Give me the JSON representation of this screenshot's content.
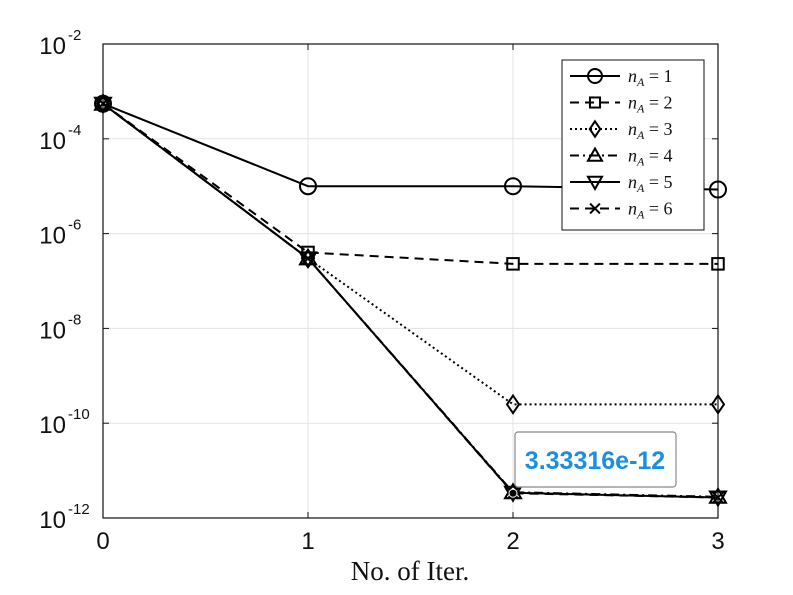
{
  "chart_data": {
    "type": "line",
    "xlabel": "No. of Iter.",
    "ylabel": "",
    "title": "",
    "x": [
      0,
      1,
      2,
      3
    ],
    "xlim": [
      0,
      3
    ],
    "ylim_log10": [
      -12,
      -2
    ],
    "yscale": "log",
    "grid": true,
    "legend_position": "top-right",
    "xticks": [
      "0",
      "1",
      "2",
      "3"
    ],
    "yticks": [
      {
        "base": "10",
        "exp": "-2"
      },
      {
        "base": "10",
        "exp": "-4"
      },
      {
        "base": "10",
        "exp": "-6"
      },
      {
        "base": "10",
        "exp": "-8"
      },
      {
        "base": "10",
        "exp": "-10"
      },
      {
        "base": "10",
        "exp": "-12"
      }
    ],
    "series": [
      {
        "name": "n_A = 1",
        "label_main": "n",
        "label_sub": "A",
        "label_rest": " = 1",
        "marker": "circle",
        "dash": "solid",
        "values": [
          0.00055,
          1e-05,
          1e-05,
          8.5e-06
        ]
      },
      {
        "name": "n_A = 2",
        "label_main": "n",
        "label_sub": "A",
        "label_rest": " = 2",
        "marker": "square",
        "dash": "dashed",
        "values": [
          0.00055,
          4e-07,
          2.3e-07,
          2.3e-07
        ]
      },
      {
        "name": "n_A = 3",
        "label_main": "n",
        "label_sub": "A",
        "label_rest": " = 3",
        "marker": "diamond",
        "dash": "dotted",
        "values": [
          0.00055,
          3e-07,
          2.5e-10,
          2.5e-10
        ]
      },
      {
        "name": "n_A = 4",
        "label_main": "n",
        "label_sub": "A",
        "label_rest": " = 4",
        "marker": "triangle-up",
        "dash": "dashdot",
        "values": [
          0.00055,
          3e-07,
          3.5e-12,
          2.8e-12
        ]
      },
      {
        "name": "n_A = 5",
        "label_main": "n",
        "label_sub": "A",
        "label_rest": " = 5",
        "marker": "triangle-down",
        "dash": "solid",
        "values": [
          0.00055,
          3e-07,
          3.4e-12,
          2.7e-12
        ]
      },
      {
        "name": "n_A = 6",
        "label_main": "n",
        "label_sub": "A",
        "label_rest": " = 6",
        "marker": "x",
        "dash": "dashed",
        "values": [
          0.00055,
          3e-07,
          3.33316e-12,
          2.7e-12
        ]
      }
    ],
    "annotation": {
      "text": "3.33316e-12",
      "x": 2,
      "y": 3.33316e-12
    }
  },
  "colors": {
    "line": "#000000",
    "grid": "#e3e3e3",
    "datatip_text": "#1a8fe0",
    "datatip_border": "#888888"
  }
}
